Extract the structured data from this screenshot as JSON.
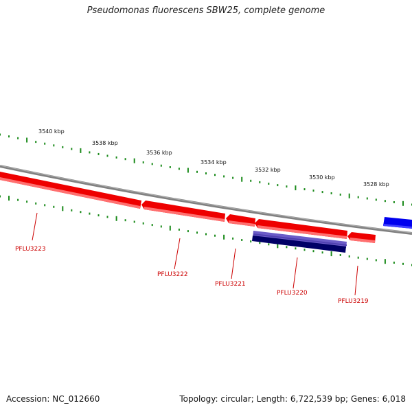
{
  "title": "Pseudomonas fluorescens SBW25, complete genome",
  "footer": {
    "accession": "Accession: NC_012660",
    "summary": "Topology: circular; Length: 6,722,539 bp; Genes: 6,018"
  },
  "scale_labels": [
    "3540 kbp",
    "3538 kbp",
    "3536 kbp",
    "3534 kbp",
    "3532 kbp",
    "3530 kbp",
    "3528 kbp"
  ],
  "genes": [
    {
      "locus": "PFLU3223",
      "strand": "+"
    },
    {
      "locus": "PFLU3222",
      "strand": "-"
    },
    {
      "locus": "PFLU3221",
      "strand": "-"
    },
    {
      "locus": "PFLU3220",
      "strand": "-"
    },
    {
      "locus": "PFLU3219",
      "strand": "-"
    }
  ],
  "colors": {
    "forward_gene": "#ee0000",
    "reverse_gene": "#ee0000",
    "cds_feature": "#1a1aa8",
    "backbone": "#808080",
    "tick": "#1a8a1a",
    "locus_label": "#cc0000"
  }
}
